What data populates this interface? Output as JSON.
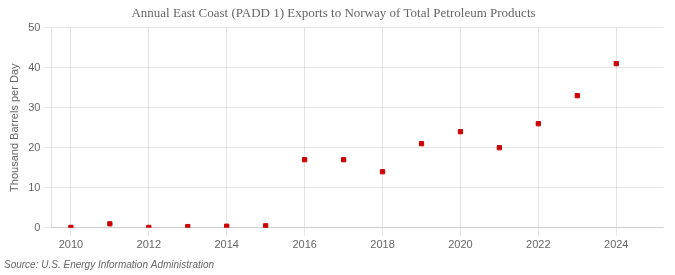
{
  "chart_data": {
    "type": "scatter",
    "title": "Annual East Coast (PADD 1) Exports to Norway of Total Petroleum Products",
    "y_label": "Thousand Barrels per Day",
    "annotation": "Source: U.S. Energy Information Administration",
    "x": [
      2010,
      2011,
      2012,
      2013,
      2014,
      2015,
      2016,
      2017,
      2018,
      2019,
      2020,
      2021,
      2022,
      2023,
      2024
    ],
    "values": [
      0.1,
      1.0,
      0.1,
      0.3,
      0.4,
      0.5,
      17.0,
      17.0,
      14.0,
      21.0,
      24.0,
      20.0,
      26.0,
      33.0,
      41.0
    ],
    "color": "#cc0000",
    "marker": "square",
    "xlim": [
      2009.5,
      2025.2
    ],
    "ylim": [
      0,
      50
    ],
    "xticks": [
      2010,
      2012,
      2014,
      2016,
      2018,
      2020,
      2022,
      2024
    ],
    "yticks": [
      0,
      10,
      20,
      30,
      40,
      50
    ],
    "grid": true
  }
}
